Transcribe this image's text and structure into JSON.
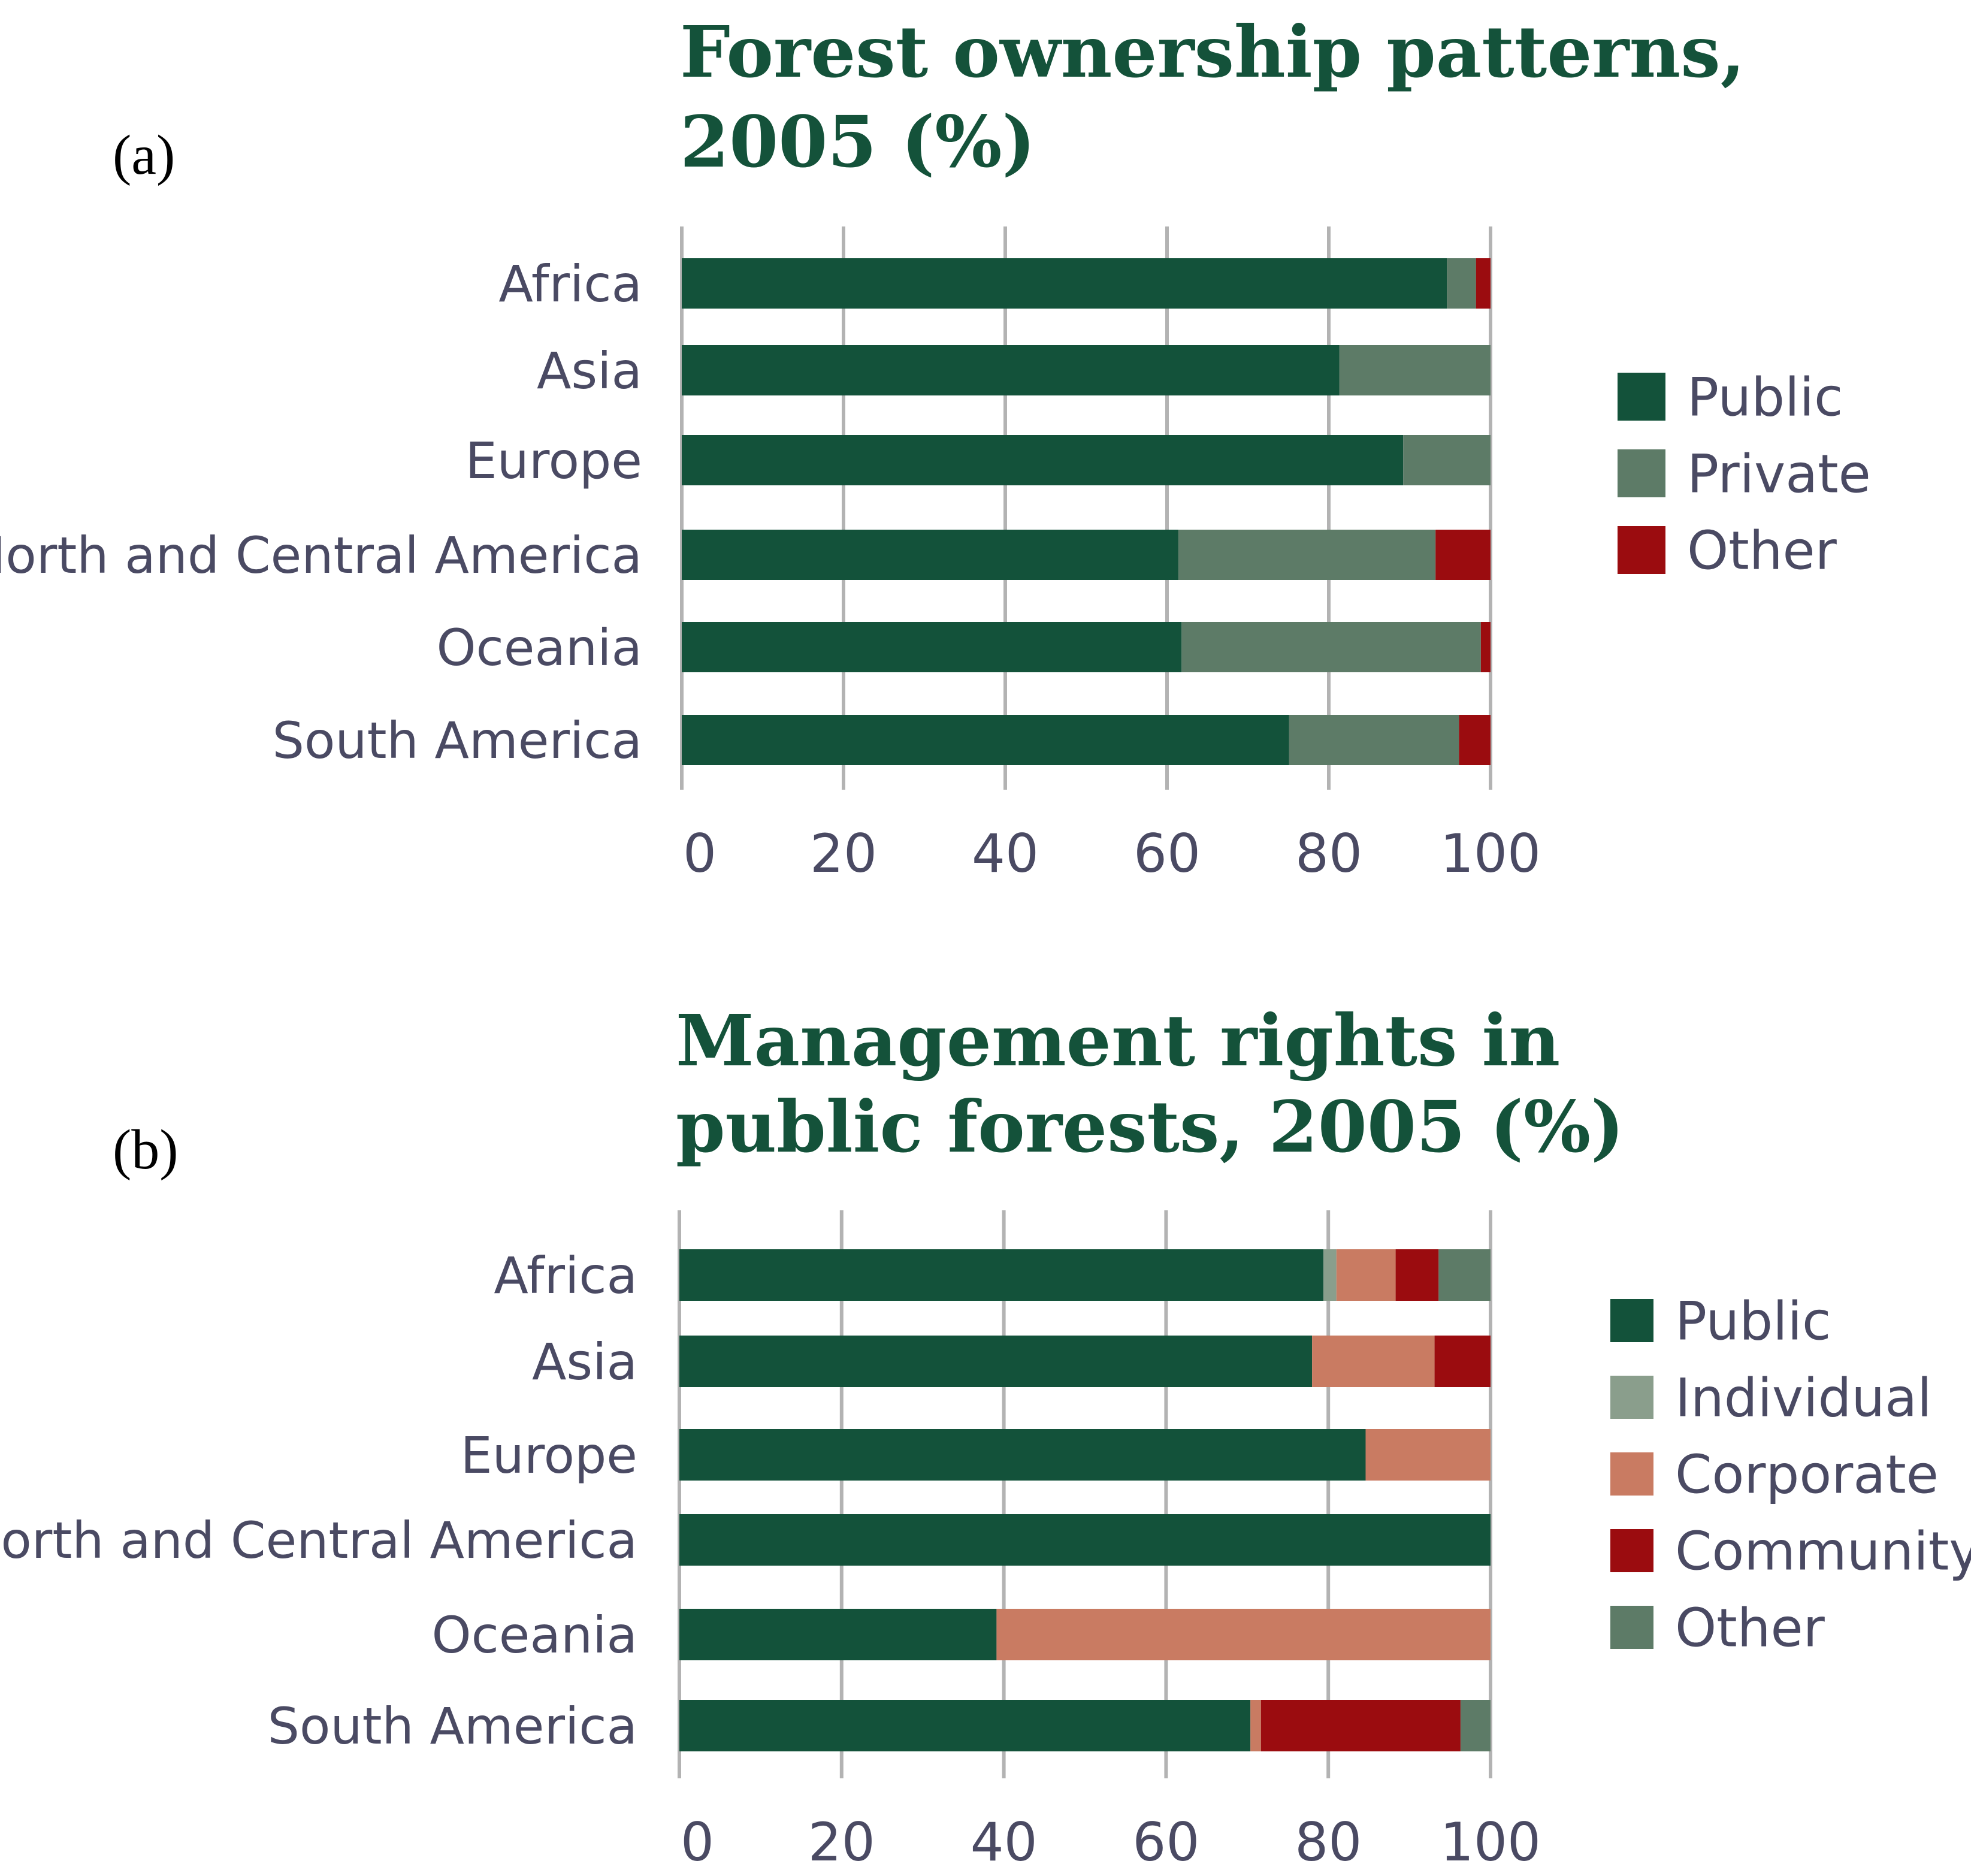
{
  "chart_data": [
    {
      "panel_label": "(a)",
      "type": "bar",
      "orientation": "horizontal",
      "stacked": true,
      "title": "Forest ownership patterns, 2005 (%)",
      "title_lines": [
        "Forest ownership patterns,",
        "2005 (%)"
      ],
      "categories": [
        "Africa",
        "Asia",
        "Europe",
        "North and Central America",
        "Oceania",
        "South America"
      ],
      "series": [
        {
          "name": "Public",
          "color": "#13523a",
          "values": [
            94.6,
            81.3,
            89.2,
            61.4,
            61.8,
            75.1
          ]
        },
        {
          "name": "Private",
          "color": "#5d7b67",
          "values": [
            3.6,
            18.7,
            10.8,
            31.8,
            37.0,
            21.0
          ]
        },
        {
          "name": "Other",
          "color": "#9b0c0f",
          "values": [
            1.8,
            0.0,
            0.0,
            6.8,
            1.2,
            3.9
          ]
        }
      ],
      "x_ticks": [
        "0",
        "20",
        "40",
        "60",
        "80",
        "100"
      ],
      "xlim": [
        0,
        100
      ],
      "grid": "vertical",
      "legend_position": "right"
    },
    {
      "panel_label": "(b)",
      "type": "bar",
      "orientation": "horizontal",
      "stacked": true,
      "title": "Management rights in public forests, 2005 (%)",
      "title_lines": [
        "Management rights in",
        "public forests, 2005 (%)"
      ],
      "categories": [
        "Africa",
        "Asia",
        "Europe",
        "North and Central America",
        "Oceania",
        "South America"
      ],
      "series": [
        {
          "name": "Public",
          "color": "#13523a",
          "values": [
            79.4,
            78.0,
            84.6,
            100.0,
            39.1,
            70.4
          ]
        },
        {
          "name": "Individual",
          "color": "#8a9e8c",
          "values": [
            1.6,
            0.0,
            0.0,
            0.0,
            0.0,
            0.0
          ]
        },
        {
          "name": "Corporate",
          "color": "#c97b62",
          "values": [
            7.3,
            15.1,
            15.4,
            0.0,
            60.9,
            1.3
          ]
        },
        {
          "name": "Community",
          "color": "#9b0c0f",
          "values": [
            5.3,
            6.9,
            0.0,
            0.0,
            0.0,
            24.6
          ]
        },
        {
          "name": "Other",
          "color": "#5d7b67",
          "values": [
            6.4,
            0.0,
            0.0,
            0.0,
            0.0,
            3.7
          ]
        }
      ],
      "x_ticks": [
        "0",
        "20",
        "40",
        "60",
        "80",
        "100"
      ],
      "xlim": [
        0,
        100
      ],
      "grid": "vertical",
      "legend_position": "right"
    }
  ]
}
